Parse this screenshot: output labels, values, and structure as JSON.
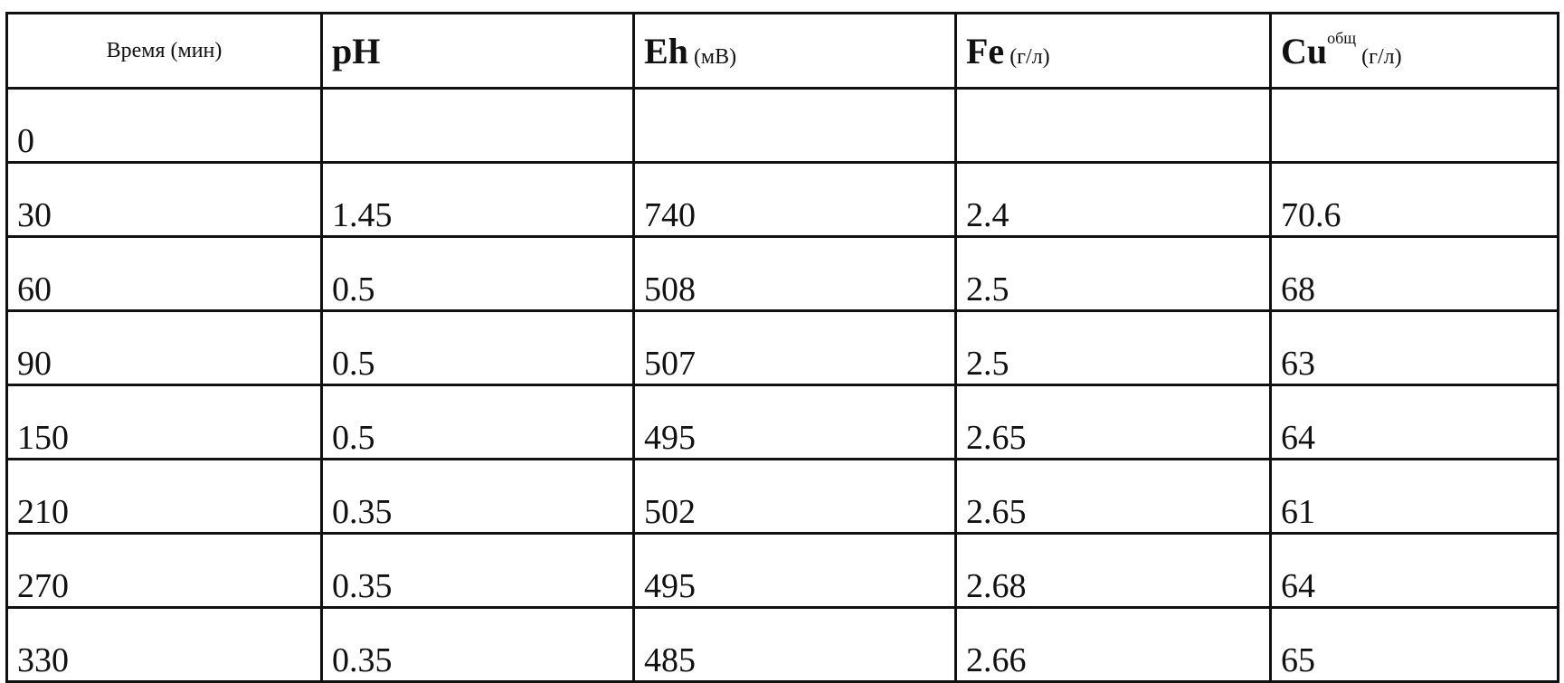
{
  "table": {
    "headers": [
      {
        "label": "Время (мин)"
      },
      {
        "symbol": "pH"
      },
      {
        "symbol": "Eh",
        "unit": "(мВ)"
      },
      {
        "symbol": "Fe",
        "unit": "(г/л)"
      },
      {
        "symbol": "Cu",
        "sup": "общ",
        "unit": "(г/л)"
      }
    ],
    "rows": [
      [
        "0",
        "",
        "",
        "",
        ""
      ],
      [
        "30",
        "1.45",
        "740",
        "2.4",
        "70.6"
      ],
      [
        "60",
        "0.5",
        "508",
        "2.5",
        "68"
      ],
      [
        "90",
        "0.5",
        "507",
        "2.5",
        "63"
      ],
      [
        "150",
        "0.5",
        "495",
        "2.65",
        "64"
      ],
      [
        "210",
        "0.35",
        "502",
        "2.65",
        "61"
      ],
      [
        "270",
        "0.35",
        "495",
        "2.68",
        "64"
      ],
      [
        "330",
        "0.35",
        "485",
        "2.66",
        "65"
      ]
    ]
  }
}
